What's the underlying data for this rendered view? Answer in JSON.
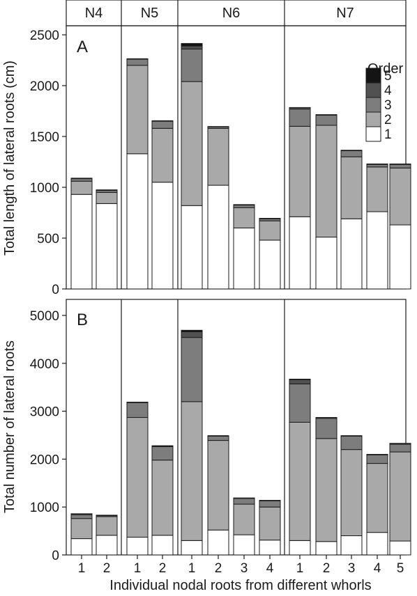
{
  "colors": {
    "order1": "#ffffff",
    "order2": "#a9a9a9",
    "order3": "#7d7d7d",
    "order4": "#515151",
    "order5": "#141414"
  },
  "group_header": [
    "N4",
    "N5",
    "N6",
    "N7"
  ],
  "x_axis_title": "Individual nodal roots from different whorls",
  "legend": {
    "title": "Order",
    "entries": [
      "5",
      "4",
      "3",
      "2",
      "1"
    ]
  },
  "chart_data": [
    {
      "type": "bar",
      "stacked": true,
      "panel": "A",
      "ylabel": "Total length of lateral roots (cm)",
      "ylim": [
        0,
        2500
      ],
      "yticks": [
        0,
        500,
        1000,
        1500,
        2000,
        2500
      ],
      "groups": [
        {
          "name": "N4",
          "bars": [
            "1",
            "2"
          ]
        },
        {
          "name": "N5",
          "bars": [
            "1",
            "2"
          ]
        },
        {
          "name": "N6",
          "bars": [
            "1",
            "2",
            "3",
            "4"
          ]
        },
        {
          "name": "N7",
          "bars": [
            "1",
            "2",
            "3",
            "4",
            "5"
          ]
        }
      ],
      "categories": [
        "N4-1",
        "N4-2",
        "N5-1",
        "N5-2",
        "N6-1",
        "N6-2",
        "N6-3",
        "N6-4",
        "N7-1",
        "N7-2",
        "N7-3",
        "N7-4",
        "N7-5"
      ],
      "series": [
        {
          "name": "1",
          "values": [
            930,
            840,
            1330,
            1050,
            820,
            1020,
            600,
            480,
            710,
            510,
            690,
            760,
            630
          ]
        },
        {
          "name": "2",
          "values": [
            130,
            110,
            870,
            530,
            1220,
            560,
            200,
            190,
            890,
            1100,
            610,
            440,
            560
          ]
        },
        {
          "name": "3",
          "values": [
            25,
            20,
            60,
            70,
            320,
            15,
            25,
            20,
            170,
            100,
            60,
            25,
            35
          ]
        },
        {
          "name": "4",
          "values": [
            5,
            5,
            5,
            5,
            30,
            3,
            5,
            5,
            15,
            5,
            5,
            5,
            5
          ]
        },
        {
          "name": "5",
          "values": [
            0,
            0,
            0,
            0,
            25,
            0,
            0,
            0,
            0,
            0,
            0,
            0,
            0
          ]
        }
      ],
      "legend_position": "top-right"
    },
    {
      "type": "bar",
      "stacked": true,
      "panel": "B",
      "ylabel": "Total number of lateral roots",
      "ylim": [
        0,
        5000
      ],
      "yticks": [
        0,
        1000,
        2000,
        3000,
        4000,
        5000
      ],
      "x_tick_labels": [
        "1",
        "2",
        "1",
        "2",
        "1",
        "2",
        "3",
        "4",
        "1",
        "2",
        "3",
        "4",
        "5"
      ],
      "series": [
        {
          "name": "1",
          "values": [
            340,
            410,
            370,
            410,
            300,
            520,
            420,
            310,
            300,
            280,
            400,
            470,
            290
          ]
        },
        {
          "name": "2",
          "values": [
            420,
            390,
            2500,
            1570,
            2900,
            1870,
            640,
            690,
            2470,
            2150,
            1800,
            1440,
            1860
          ]
        },
        {
          "name": "3",
          "values": [
            80,
            20,
            310,
            280,
            1340,
            90,
            120,
            130,
            800,
            420,
            280,
            180,
            160
          ]
        },
        {
          "name": "4",
          "values": [
            20,
            10,
            10,
            10,
            120,
            10,
            10,
            10,
            90,
            20,
            10,
            10,
            20
          ]
        },
        {
          "name": "5",
          "values": [
            0,
            0,
            0,
            10,
            30,
            0,
            0,
            0,
            10,
            0,
            0,
            0,
            0
          ]
        }
      ]
    }
  ]
}
